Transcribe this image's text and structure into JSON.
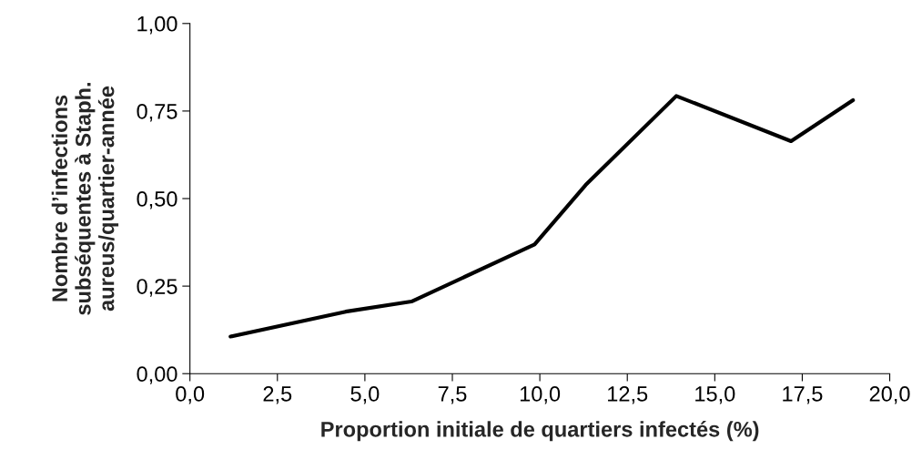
{
  "chart_data": {
    "type": "line",
    "xlabel": "Proportion initiale de quartiers infectés (%)",
    "ylabel": "Nombre d’infections\nsubséquentes à Staph.\naureus/quartier-année",
    "x": [
      1.16,
      4.45,
      6.33,
      9.85,
      11.31,
      13.9,
      17.18,
      18.95
    ],
    "series": [
      {
        "color": "#000000",
        "values": [
          0.106,
          0.177,
          0.206,
          0.369,
          0.539,
          0.793,
          0.664,
          0.781
        ]
      }
    ],
    "xlim": [
      0,
      20
    ],
    "ylim": [
      0,
      1
    ],
    "xticks": [
      {
        "value": 0,
        "label": "0,0"
      },
      {
        "value": 2.5,
        "label": "2,5"
      },
      {
        "value": 5,
        "label": "5,0"
      },
      {
        "value": 7.5,
        "label": "7,5"
      },
      {
        "value": 10,
        "label": "10,0"
      },
      {
        "value": 12.5,
        "label": "12,5"
      },
      {
        "value": 15,
        "label": "15,0"
      },
      {
        "value": 17.5,
        "label": "17,5"
      },
      {
        "value": 20,
        "label": "20,0"
      }
    ],
    "yticks": [
      {
        "value": 0,
        "label": "0,00"
      },
      {
        "value": 0.25,
        "label": "0,25"
      },
      {
        "value": 0.5,
        "label": "0,50"
      },
      {
        "value": 0.75,
        "label": "0,75"
      },
      {
        "value": 1,
        "label": "1,00"
      }
    ],
    "grid": false,
    "marker": "none",
    "line_style": "solid"
  }
}
